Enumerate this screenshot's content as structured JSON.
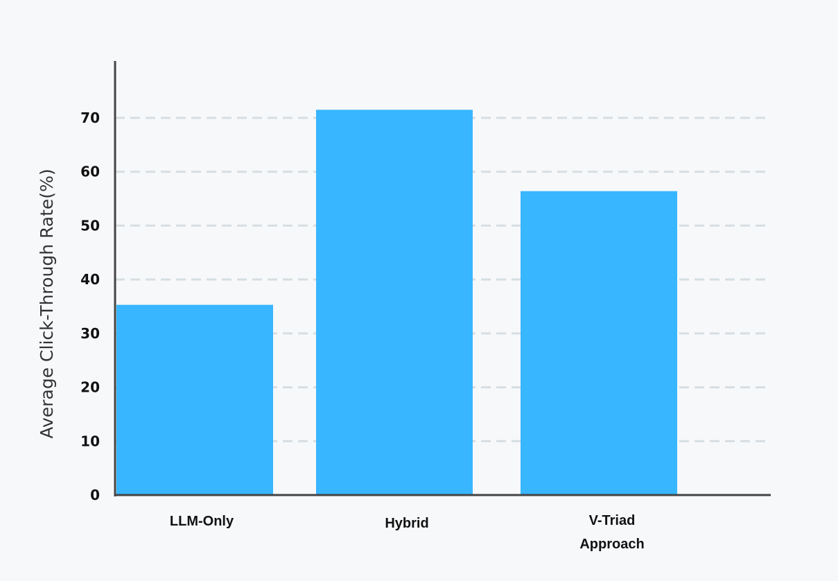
{
  "chart_data": {
    "type": "bar",
    "categories": [
      "LLM-Only",
      "Hybrid",
      "V-Triad Approach"
    ],
    "values": [
      35.3,
      71.5,
      56.4
    ],
    "xlabel": "",
    "ylabel": "Average Click-Through Rate(%)",
    "ylim": [
      0,
      80
    ],
    "yticks": [
      0,
      10,
      20,
      30,
      40,
      50,
      60,
      70
    ],
    "grid": "horizontal dashed",
    "legend": "none",
    "colors": {
      "bar": "#38b6ff",
      "grid": "#d6dee2",
      "axis": "#444444",
      "background": "#f7f8fa"
    }
  }
}
